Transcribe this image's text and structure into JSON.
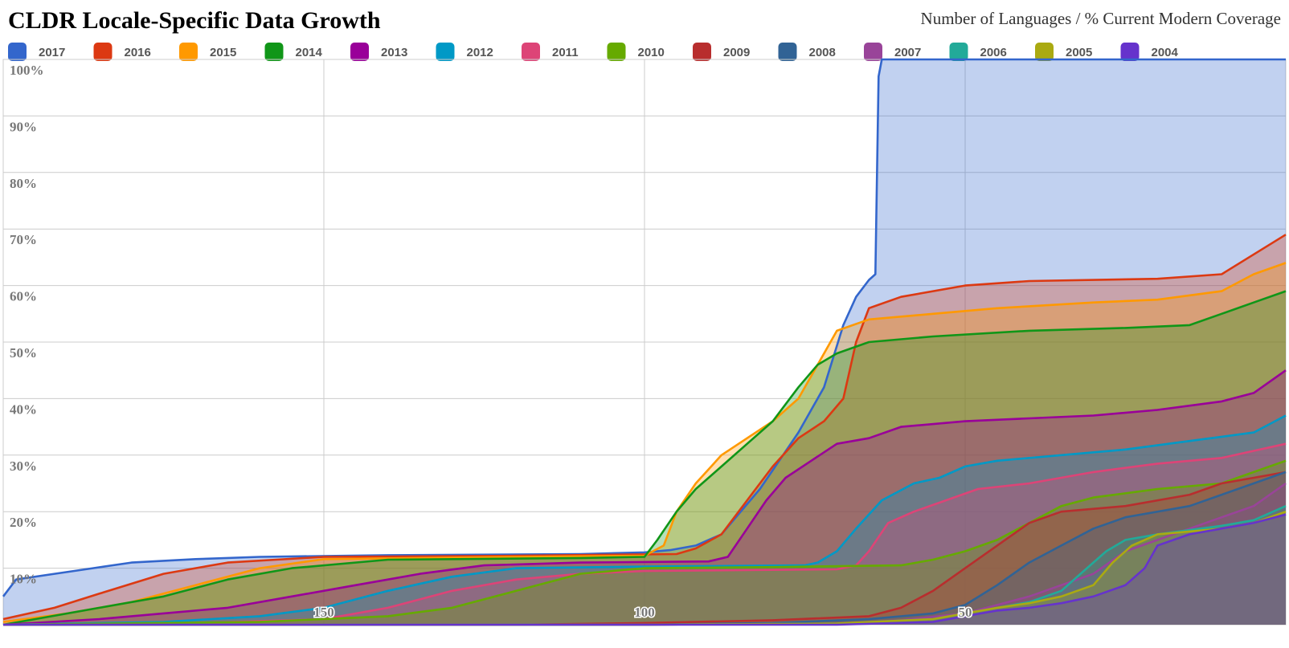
{
  "chart_data": {
    "type": "area",
    "title": "CLDR Locale-Specific Data Growth",
    "subtitle": "Number of Languages / % Current Modern Coverage",
    "xlabel": "",
    "ylabel": "",
    "x_axis": {
      "min": 0,
      "max": 200,
      "reversed": true,
      "ticks": [
        150,
        100,
        50
      ]
    },
    "y_axis": {
      "min": 0,
      "max": 100,
      "ticks": [
        10,
        20,
        30,
        40,
        50,
        60,
        70,
        80,
        90,
        100
      ],
      "suffix": "%"
    },
    "grid": true,
    "legend_position": "top",
    "series": [
      {
        "name": "2017",
        "color": "#3366CC",
        "points": [
          [
            200,
            5
          ],
          [
            198,
            8
          ],
          [
            192,
            9
          ],
          [
            186,
            10
          ],
          [
            180,
            11
          ],
          [
            170,
            11.6
          ],
          [
            160,
            12
          ],
          [
            140,
            12.3
          ],
          [
            110,
            12.5
          ],
          [
            100,
            12.8
          ],
          [
            96,
            13.2
          ],
          [
            92,
            14
          ],
          [
            88,
            16
          ],
          [
            85,
            20
          ],
          [
            82,
            24
          ],
          [
            79,
            29
          ],
          [
            76,
            34
          ],
          [
            72,
            42
          ],
          [
            69,
            53
          ],
          [
            67,
            58
          ],
          [
            65,
            61
          ],
          [
            64,
            62
          ],
          [
            63.5,
            97
          ],
          [
            63,
            100
          ],
          [
            0,
            100
          ]
        ]
      },
      {
        "name": "2016",
        "color": "#DC3912",
        "points": [
          [
            200,
            1
          ],
          [
            192,
            3
          ],
          [
            185,
            5.5
          ],
          [
            175,
            9
          ],
          [
            165,
            11
          ],
          [
            150,
            12
          ],
          [
            120,
            12.2
          ],
          [
            95,
            12.5
          ],
          [
            92,
            13.5
          ],
          [
            88,
            16
          ],
          [
            84,
            22
          ],
          [
            80,
            28
          ],
          [
            76,
            33
          ],
          [
            72,
            36
          ],
          [
            69,
            40
          ],
          [
            67,
            50
          ],
          [
            65,
            56
          ],
          [
            60,
            58
          ],
          [
            50,
            60
          ],
          [
            40,
            60.8
          ],
          [
            20,
            61.2
          ],
          [
            10,
            62
          ],
          [
            0,
            69
          ]
        ]
      },
      {
        "name": "2015",
        "color": "#FF9900",
        "points": [
          [
            200,
            0.5
          ],
          [
            190,
            2
          ],
          [
            180,
            4
          ],
          [
            170,
            7
          ],
          [
            160,
            10
          ],
          [
            150,
            11.6
          ],
          [
            120,
            12
          ],
          [
            100,
            12.2
          ],
          [
            97,
            14
          ],
          [
            95,
            20
          ],
          [
            92,
            25
          ],
          [
            88,
            30
          ],
          [
            84,
            33
          ],
          [
            80,
            36
          ],
          [
            76,
            40
          ],
          [
            73,
            46
          ],
          [
            70,
            52
          ],
          [
            65,
            54
          ],
          [
            55,
            55
          ],
          [
            45,
            56
          ],
          [
            30,
            57
          ],
          [
            20,
            57.5
          ],
          [
            10,
            59
          ],
          [
            5,
            62
          ],
          [
            0,
            64
          ]
        ]
      },
      {
        "name": "2014",
        "color": "#109618",
        "points": [
          [
            200,
            0
          ],
          [
            195,
            1
          ],
          [
            185,
            3
          ],
          [
            175,
            5
          ],
          [
            165,
            8
          ],
          [
            155,
            10
          ],
          [
            140,
            11.5
          ],
          [
            110,
            11.8
          ],
          [
            100,
            12
          ],
          [
            98,
            15
          ],
          [
            95,
            20
          ],
          [
            92,
            24
          ],
          [
            88,
            28
          ],
          [
            84,
            32
          ],
          [
            80,
            36
          ],
          [
            76,
            42
          ],
          [
            73,
            46
          ],
          [
            70,
            48
          ],
          [
            65,
            50
          ],
          [
            55,
            51
          ],
          [
            40,
            52
          ],
          [
            25,
            52.5
          ],
          [
            15,
            53
          ],
          [
            10,
            55
          ],
          [
            5,
            57
          ],
          [
            0,
            59
          ]
        ]
      },
      {
        "name": "2013",
        "color": "#990099",
        "points": [
          [
            200,
            0
          ],
          [
            185,
            1
          ],
          [
            175,
            2
          ],
          [
            165,
            3
          ],
          [
            155,
            5
          ],
          [
            145,
            7
          ],
          [
            135,
            9
          ],
          [
            125,
            10.5
          ],
          [
            110,
            11
          ],
          [
            90,
            11.2
          ],
          [
            87,
            12
          ],
          [
            84,
            17
          ],
          [
            81,
            22
          ],
          [
            78,
            26
          ],
          [
            74,
            29
          ],
          [
            70,
            32
          ],
          [
            65,
            33
          ],
          [
            60,
            35
          ],
          [
            50,
            36
          ],
          [
            40,
            36.5
          ],
          [
            30,
            37
          ],
          [
            20,
            38
          ],
          [
            10,
            39.5
          ],
          [
            5,
            41
          ],
          [
            0,
            45
          ]
        ]
      },
      {
        "name": "2012",
        "color": "#0099C6",
        "points": [
          [
            200,
            0
          ],
          [
            175,
            0.5
          ],
          [
            160,
            1.5
          ],
          [
            150,
            3
          ],
          [
            140,
            6
          ],
          [
            130,
            8.5
          ],
          [
            120,
            10
          ],
          [
            100,
            10.3
          ],
          [
            75,
            10.5
          ],
          [
            73,
            11
          ],
          [
            70,
            13
          ],
          [
            67,
            17
          ],
          [
            63,
            22
          ],
          [
            58,
            25
          ],
          [
            54,
            26
          ],
          [
            50,
            28
          ],
          [
            45,
            29
          ],
          [
            35,
            30
          ],
          [
            25,
            31
          ],
          [
            15,
            32.5
          ],
          [
            5,
            34
          ],
          [
            0,
            37
          ]
        ]
      },
      {
        "name": "2011",
        "color": "#DD4477",
        "points": [
          [
            200,
            0
          ],
          [
            170,
            0.3
          ],
          [
            150,
            1
          ],
          [
            140,
            3
          ],
          [
            130,
            6
          ],
          [
            120,
            8
          ],
          [
            110,
            9
          ],
          [
            100,
            9.5
          ],
          [
            70,
            9.8
          ],
          [
            67,
            10.5
          ],
          [
            65,
            13
          ],
          [
            62,
            18
          ],
          [
            58,
            20
          ],
          [
            53,
            22
          ],
          [
            48,
            24
          ],
          [
            40,
            25
          ],
          [
            30,
            27
          ],
          [
            20,
            28.5
          ],
          [
            10,
            29.5
          ],
          [
            0,
            32
          ]
        ]
      },
      {
        "name": "2010",
        "color": "#66AA00",
        "points": [
          [
            200,
            0
          ],
          [
            160,
            0.5
          ],
          [
            140,
            1.5
          ],
          [
            130,
            3
          ],
          [
            120,
            6
          ],
          [
            110,
            9
          ],
          [
            100,
            10
          ],
          [
            80,
            10.2
          ],
          [
            60,
            10.5
          ],
          [
            55,
            11.5
          ],
          [
            50,
            13
          ],
          [
            45,
            15
          ],
          [
            40,
            18
          ],
          [
            35,
            21
          ],
          [
            30,
            22.5
          ],
          [
            20,
            24
          ],
          [
            10,
            25
          ],
          [
            5,
            27
          ],
          [
            0,
            29
          ]
        ]
      },
      {
        "name": "2009",
        "color": "#B82E2E",
        "points": [
          [
            200,
            0
          ],
          [
            120,
            0
          ],
          [
            100,
            0.3
          ],
          [
            80,
            0.8
          ],
          [
            65,
            1.5
          ],
          [
            60,
            3
          ],
          [
            55,
            6
          ],
          [
            50,
            10
          ],
          [
            45,
            14
          ],
          [
            40,
            18
          ],
          [
            35,
            20
          ],
          [
            25,
            21
          ],
          [
            15,
            23
          ],
          [
            10,
            25
          ],
          [
            5,
            26
          ],
          [
            0,
            27
          ]
        ]
      },
      {
        "name": "2008",
        "color": "#316395",
        "points": [
          [
            200,
            0
          ],
          [
            100,
            0
          ],
          [
            80,
            0.3
          ],
          [
            65,
            1
          ],
          [
            55,
            2
          ],
          [
            50,
            3.5
          ],
          [
            45,
            7
          ],
          [
            40,
            11
          ],
          [
            35,
            14
          ],
          [
            30,
            17
          ],
          [
            25,
            19
          ],
          [
            15,
            21
          ],
          [
            10,
            23
          ],
          [
            5,
            25
          ],
          [
            0,
            27
          ]
        ]
      },
      {
        "name": "2007",
        "color": "#994499",
        "points": [
          [
            200,
            0
          ],
          [
            100,
            0
          ],
          [
            70,
            0.2
          ],
          [
            60,
            0.8
          ],
          [
            50,
            2
          ],
          [
            45,
            3.5
          ],
          [
            40,
            5
          ],
          [
            35,
            7
          ],
          [
            30,
            9
          ],
          [
            25,
            13
          ],
          [
            20,
            15
          ],
          [
            15,
            17
          ],
          [
            10,
            19
          ],
          [
            5,
            21
          ],
          [
            0,
            25
          ]
        ]
      },
      {
        "name": "2006",
        "color": "#22AA99",
        "points": [
          [
            200,
            0
          ],
          [
            100,
            0
          ],
          [
            70,
            0.2
          ],
          [
            55,
            1
          ],
          [
            50,
            2
          ],
          [
            45,
            3
          ],
          [
            40,
            4
          ],
          [
            35,
            6
          ],
          [
            32,
            9
          ],
          [
            28,
            13
          ],
          [
            25,
            15
          ],
          [
            20,
            16
          ],
          [
            10,
            17.5
          ],
          [
            5,
            18.5
          ],
          [
            0,
            21
          ]
        ]
      },
      {
        "name": "2005",
        "color": "#AAAA11",
        "points": [
          [
            200,
            0
          ],
          [
            100,
            0
          ],
          [
            70,
            0.2
          ],
          [
            55,
            1
          ],
          [
            50,
            2
          ],
          [
            45,
            3
          ],
          [
            40,
            3.8
          ],
          [
            35,
            5
          ],
          [
            30,
            7
          ],
          [
            27,
            11
          ],
          [
            24,
            14
          ],
          [
            20,
            16
          ],
          [
            10,
            17
          ],
          [
            5,
            18
          ],
          [
            0,
            20
          ]
        ]
      },
      {
        "name": "2004",
        "color": "#6633CC",
        "points": [
          [
            200,
            0
          ],
          [
            100,
            0
          ],
          [
            70,
            0
          ],
          [
            55,
            0.5
          ],
          [
            50,
            1.5
          ],
          [
            45,
            2.5
          ],
          [
            40,
            3
          ],
          [
            35,
            3.8
          ],
          [
            30,
            5
          ],
          [
            25,
            7
          ],
          [
            22,
            10
          ],
          [
            20,
            14
          ],
          [
            15,
            16
          ],
          [
            10,
            17
          ],
          [
            5,
            18
          ],
          [
            0,
            19.5
          ]
        ]
      }
    ]
  }
}
